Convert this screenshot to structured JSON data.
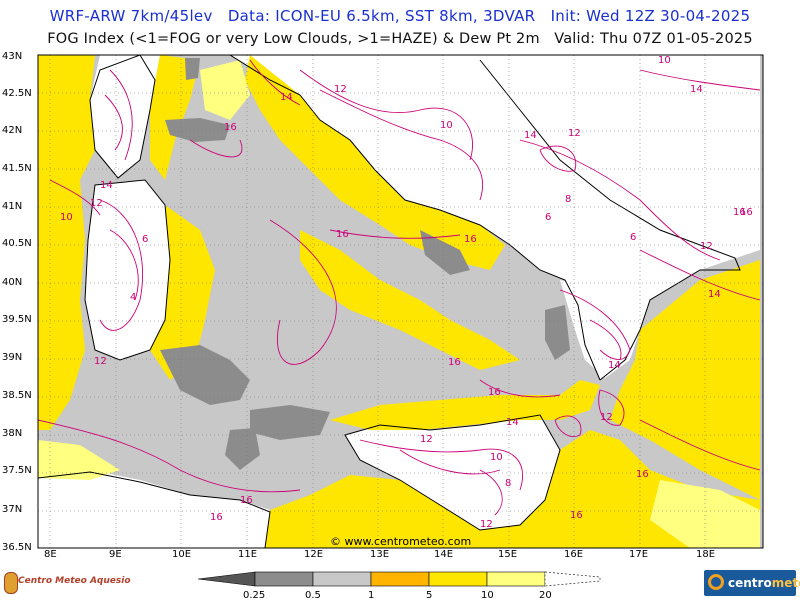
{
  "header": {
    "line1": "WRF-ARW 7km/45lev   Data: ICON-EU 6.5km, SST 8km, 3DVAR   Init: Wed 12Z 30-04-2025",
    "line2": "FOG Index (<1=FOG or very Low Clouds, >1=HAZE) & Dew Pt 2m   Valid: Thu 07Z 01-05-2025"
  },
  "axes": {
    "lat_labels": [
      "43N",
      "42.5N",
      "42N",
      "41.5N",
      "41N",
      "40.5N",
      "40N",
      "39.5N",
      "39N",
      "38.5N",
      "38N",
      "37.5N",
      "37N",
      "36.5N"
    ],
    "lon_labels": [
      "8E",
      "9E",
      "10E",
      "11E",
      "12E",
      "13E",
      "14E",
      "15E",
      "16E",
      "17E",
      "18E"
    ]
  },
  "credit": "© www.centrometeo.com",
  "contour_labels": [
    "16",
    "16",
    "14",
    "12",
    "10",
    "16",
    "16",
    "14",
    "14",
    "12",
    "12",
    "14",
    "10",
    "14",
    "12",
    "6",
    "8",
    "6",
    "16",
    "16",
    "16",
    "14",
    "12",
    "10",
    "12",
    "14",
    "12",
    "10",
    "8",
    "16",
    "16",
    "16",
    "6",
    "4",
    "12",
    "16"
  ],
  "legend": {
    "thresholds": [
      "0.25",
      "0.5",
      "1",
      "5",
      "10",
      "20"
    ],
    "colors": [
      "#555555",
      "#8c8c8c",
      "#c8c8c8",
      "#ffb400",
      "#ffe600",
      "#ffff80"
    ]
  },
  "logos": {
    "left": "Centro Meteo Aquesio",
    "right_prefix": "centro",
    "right_suffix": "meteo"
  }
}
